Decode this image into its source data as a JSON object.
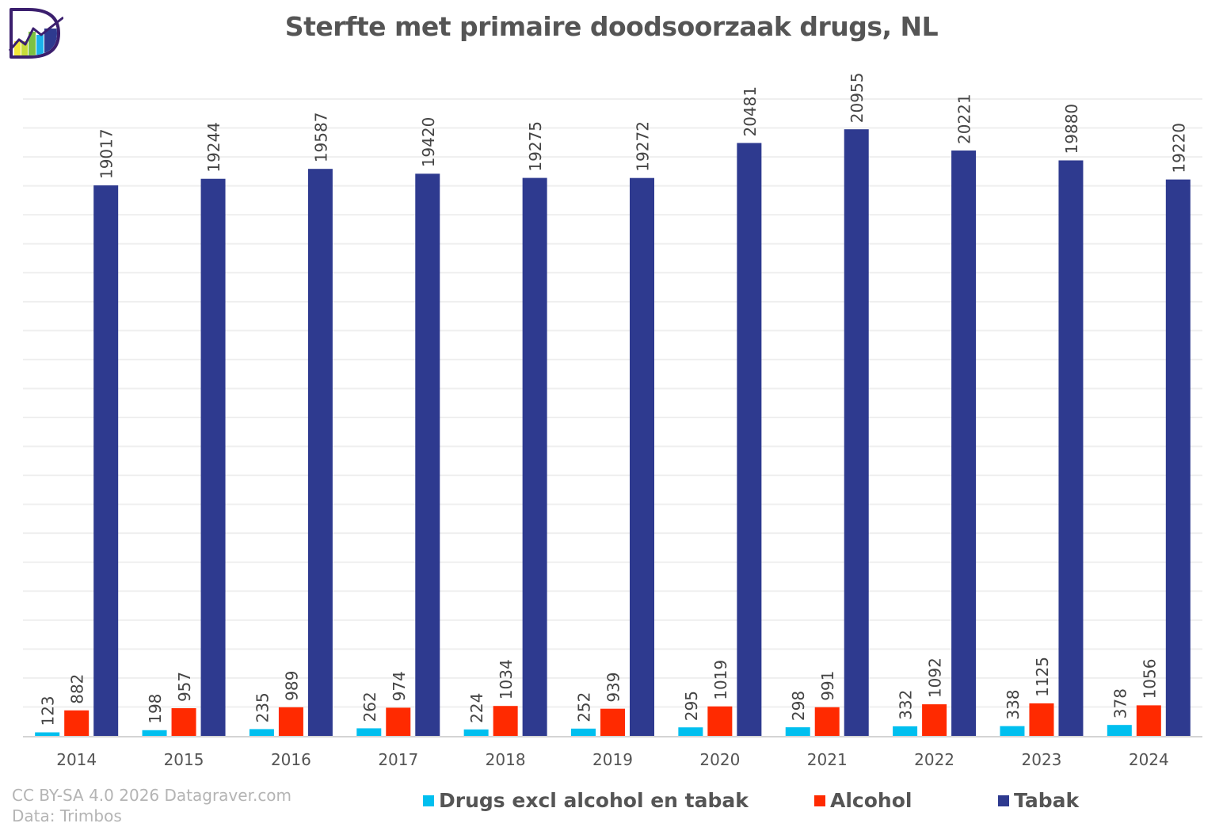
{
  "logo": {
    "text": "D",
    "icon": "datagraver-logo"
  },
  "footer": {
    "credit": "CC BY-SA 4.0 2026 Datagraver.com",
    "source": "Data:  Trimbos"
  },
  "chart_data": {
    "type": "bar",
    "title": "Sterfte met primaire doodsoorzaak drugs, NL",
    "xlabel": "",
    "ylabel": "",
    "ylim": [
      0,
      22000
    ],
    "grid": true,
    "grid_step": 1000,
    "legend_position": "bottom",
    "categories": [
      "2014",
      "2015",
      "2016",
      "2017",
      "2018",
      "2019",
      "2020",
      "2021",
      "2022",
      "2023",
      "2024"
    ],
    "series": [
      {
        "name": "Drugs excl alcohol en tabak",
        "color": "#00bfef",
        "values": [
          123,
          198,
          235,
          262,
          224,
          252,
          295,
          298,
          332,
          338,
          378
        ]
      },
      {
        "name": "Alcohol",
        "color": "#ff2a00",
        "values": [
          882,
          957,
          989,
          974,
          1034,
          939,
          1019,
          991,
          1092,
          1125,
          1056
        ]
      },
      {
        "name": "Tabak",
        "color": "#2e3a8f",
        "values": [
          19017,
          19244,
          19587,
          19420,
          19275,
          19272,
          20481,
          20955,
          20221,
          19880,
          19220
        ]
      }
    ],
    "colors": {
      "grid": "#efefef",
      "axis": "#d4d4d4",
      "label": "#444444",
      "tick": "#555555"
    }
  }
}
